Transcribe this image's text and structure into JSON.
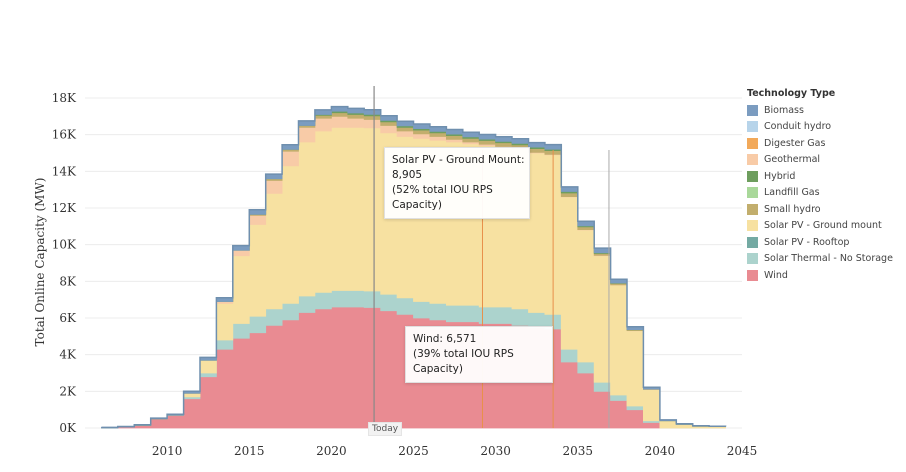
{
  "chart_data": {
    "type": "area",
    "stacked": true,
    "title": "",
    "xlabel": "",
    "ylabel": "Total Online Capacity (MW)",
    "xlim": [
      2005,
      2045
    ],
    "ylim": [
      0,
      18000
    ],
    "x_ticks": [
      "2010",
      "2015",
      "2020",
      "2025",
      "2030",
      "2035",
      "2040",
      "2045"
    ],
    "y_ticks": [
      "0K",
      "2K",
      "4K",
      "6K",
      "8K",
      "10K",
      "12K",
      "14K",
      "16K",
      "18K"
    ],
    "grid": true,
    "legend_position": "right",
    "legend_title": "Technology Type",
    "legend": [
      {
        "name": "Biomass",
        "color": "#7b9cc0"
      },
      {
        "name": "Conduit hydro",
        "color": "#b7d4ea"
      },
      {
        "name": "Digester Gas",
        "color": "#f2a95a"
      },
      {
        "name": "Geothermal",
        "color": "#f8cba7"
      },
      {
        "name": "Hybrid",
        "color": "#6e9e5e"
      },
      {
        "name": "Landfill Gas",
        "color": "#a9d89a"
      },
      {
        "name": "Small hydro",
        "color": "#c2ae6d"
      },
      {
        "name": "Solar PV - Ground mount",
        "color": "#f7e1a1"
      },
      {
        "name": "Solar PV - Rooftop",
        "color": "#74aaa3"
      },
      {
        "name": "Solar Thermal - No Storage",
        "color": "#acd3cd"
      },
      {
        "name": "Wind",
        "color": "#e98b92"
      }
    ],
    "x": [
      2006,
      2007,
      2008,
      2009,
      2010,
      2011,
      2012,
      2013,
      2014,
      2015,
      2016,
      2017,
      2018,
      2019,
      2020,
      2021,
      2022,
      2023,
      2024,
      2025,
      2026,
      2027,
      2028,
      2029,
      2030,
      2031,
      2032,
      2033,
      2034,
      2035,
      2036,
      2037,
      2038,
      2039,
      2040,
      2041,
      2042,
      2043,
      2044
    ],
    "series": [
      {
        "name": "Wind",
        "color": "#e98b92",
        "values": [
          0,
          50,
          150,
          500,
          700,
          1600,
          2800,
          4300,
          4900,
          5200,
          5600,
          5900,
          6300,
          6500,
          6600,
          6600,
          6571,
          6400,
          6200,
          6000,
          5900,
          5800,
          5800,
          5700,
          5700,
          5600,
          5500,
          5400,
          3600,
          3000,
          2000,
          1500,
          1000,
          300,
          0,
          0,
          0,
          0,
          0
        ]
      },
      {
        "name": "Solar Thermal - No Storage",
        "color": "#acd3cd",
        "values": [
          0,
          0,
          0,
          0,
          0,
          100,
          200,
          500,
          800,
          900,
          900,
          900,
          900,
          900,
          900,
          900,
          900,
          900,
          900,
          900,
          900,
          900,
          900,
          900,
          900,
          900,
          800,
          800,
          700,
          600,
          500,
          300,
          200,
          100,
          0,
          0,
          0,
          0,
          0
        ]
      },
      {
        "name": "Solar PV - Ground mount",
        "color": "#f7e1a1",
        "values": [
          0,
          0,
          0,
          0,
          0,
          200,
          700,
          2000,
          3700,
          5000,
          6300,
          7500,
          8400,
          8800,
          8900,
          8900,
          8905,
          8800,
          8800,
          8900,
          8900,
          8900,
          8800,
          8800,
          8700,
          8700,
          8700,
          8700,
          8300,
          7200,
          6900,
          6000,
          4100,
          1700,
          400,
          200,
          100,
          80,
          60
        ]
      },
      {
        "name": "Geothermal",
        "color": "#f8cba7",
        "values": [
          0,
          0,
          0,
          0,
          0,
          0,
          0,
          100,
          300,
          500,
          700,
          800,
          800,
          700,
          600,
          500,
          450,
          400,
          300,
          250,
          200,
          150,
          100,
          80,
          60,
          50,
          40,
          30,
          20,
          20,
          20,
          10,
          10,
          0,
          0,
          0,
          0,
          0,
          0
        ]
      },
      {
        "name": "Small hydro",
        "color": "#c2ae6d",
        "values": [
          0,
          0,
          0,
          0,
          0,
          0,
          0,
          0,
          0,
          50,
          100,
          100,
          100,
          150,
          200,
          200,
          200,
          200,
          200,
          200,
          200,
          200,
          200,
          200,
          200,
          200,
          200,
          200,
          200,
          150,
          100,
          80,
          50,
          20,
          0,
          0,
          0,
          0,
          0
        ]
      },
      {
        "name": "Hybrid",
        "color": "#6e9e5e",
        "values": [
          0,
          0,
          0,
          0,
          0,
          0,
          0,
          0,
          0,
          0,
          0,
          0,
          0,
          50,
          80,
          80,
          80,
          80,
          80,
          80,
          80,
          80,
          80,
          80,
          80,
          80,
          80,
          80,
          80,
          60,
          40,
          20,
          10,
          0,
          0,
          0,
          0,
          0,
          0
        ]
      },
      {
        "name": "Biomass",
        "color": "#7b9cc0",
        "values": [
          30,
          30,
          30,
          40,
          50,
          100,
          150,
          200,
          250,
          250,
          250,
          250,
          250,
          250,
          250,
          250,
          250,
          250,
          250,
          250,
          250,
          250,
          250,
          250,
          250,
          250,
          250,
          250,
          250,
          250,
          250,
          200,
          150,
          100,
          40,
          30,
          20,
          20,
          20
        ]
      }
    ],
    "vertical_lines": [
      {
        "x": 2022.6,
        "color": "#888888",
        "label": "Today"
      },
      {
        "x": 2029.2,
        "color": "#e8904a",
        "label": ""
      },
      {
        "x": 2033.5,
        "color": "#e8904a",
        "label": ""
      },
      {
        "x": 2036.9,
        "color": "#aaaaaa",
        "label": ""
      }
    ],
    "annotations": [
      {
        "lines": [
          "Solar PV - Ground Mount:",
          "8,905",
          "(52% total IOU RPS",
          "Capacity)"
        ]
      },
      {
        "lines": [
          "Wind: 6,571",
          "(39% total IOU RPS",
          "Capacity)"
        ]
      }
    ]
  }
}
